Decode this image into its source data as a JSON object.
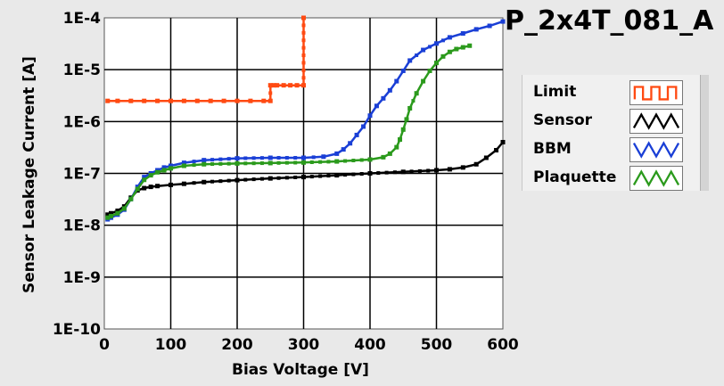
{
  "chart_data": {
    "type": "line",
    "title": "P_2x4T_081_A",
    "xlabel": "Bias Voltage [V]",
    "ylabel": "Sensor Leakage Current [A]",
    "xlim": [
      0,
      600
    ],
    "ylim": [
      1e-10,
      0.0001
    ],
    "yscale": "log",
    "grid": true,
    "legend_position": "right",
    "xticks": [
      0,
      100,
      200,
      300,
      400,
      500,
      600
    ],
    "xtick_labels": [
      "0",
      "100",
      "200",
      "300",
      "400",
      "500",
      "600"
    ],
    "yticks": [
      1e-10,
      1e-09,
      1e-08,
      1e-07,
      1e-06,
      1e-05,
      0.0001
    ],
    "ytick_labels": [
      "1E-10",
      "1E-9",
      "1E-8",
      "1E-7",
      "1E-6",
      "1E-5",
      "1E-4"
    ],
    "series": [
      {
        "name": "Limit",
        "color": "#ff4a12",
        "step": true,
        "markers": true,
        "x": [
          5,
          20,
          40,
          60,
          80,
          100,
          120,
          140,
          160,
          180,
          200,
          220,
          240,
          250,
          250,
          255,
          260,
          270,
          280,
          290,
          300,
          300
        ],
        "y": [
          2.5e-06,
          2.5e-06,
          2.5e-06,
          2.5e-06,
          2.5e-06,
          2.5e-06,
          2.5e-06,
          2.5e-06,
          2.5e-06,
          2.5e-06,
          2.5e-06,
          2.5e-06,
          2.5e-06,
          2.5e-06,
          5e-06,
          5e-06,
          5e-06,
          5e-06,
          5e-06,
          5e-06,
          5e-06,
          0.0001
        ]
      },
      {
        "name": "Sensor",
        "color": "#000000",
        "step": false,
        "markers": true,
        "x": [
          5,
          10,
          20,
          30,
          40,
          50,
          60,
          70,
          80,
          100,
          120,
          150,
          200,
          250,
          300,
          350,
          400,
          450,
          500,
          520,
          540,
          560,
          575,
          590,
          600
        ],
        "y": [
          1.6e-08,
          1.7e-08,
          1.9e-08,
          2.3e-08,
          3.4e-08,
          4.7e-08,
          5.2e-08,
          5.5e-08,
          5.7e-08,
          6e-08,
          6.3e-08,
          6.8e-08,
          7.4e-08,
          8e-08,
          8.5e-08,
          9.2e-08,
          1e-07,
          1.07e-07,
          1.15e-07,
          1.2e-07,
          1.3e-07,
          1.5e-07,
          2e-07,
          2.8e-07,
          4e-07
        ]
      },
      {
        "name": "BBM",
        "color": "#1a3fd6",
        "step": false,
        "markers": true,
        "x": [
          5,
          10,
          20,
          30,
          40,
          50,
          60,
          70,
          80,
          90,
          100,
          120,
          150,
          200,
          250,
          300,
          330,
          350,
          360,
          370,
          380,
          390,
          400,
          410,
          420,
          430,
          440,
          450,
          460,
          480,
          500,
          520,
          540,
          560,
          580,
          600
        ],
        "y": [
          1.3e-08,
          1.4e-08,
          1.6e-08,
          2e-08,
          3.2e-08,
          5.5e-08,
          8.5e-08,
          1e-07,
          1.15e-07,
          1.3e-07,
          1.4e-07,
          1.6e-07,
          1.8e-07,
          1.95e-07,
          2e-07,
          2e-07,
          2.1e-07,
          2.4e-07,
          2.9e-07,
          3.8e-07,
          5.5e-07,
          8e-07,
          1.3e-06,
          2e-06,
          2.8e-06,
          4e-06,
          6e-06,
          9.5e-06,
          1.5e-05,
          2.4e-05,
          3.2e-05,
          4.2e-05,
          5e-05,
          6e-05,
          7e-05,
          8.5e-05
        ]
      },
      {
        "name": "Plaquette",
        "color": "#2b9a1c",
        "step": false,
        "markers": true,
        "x": [
          5,
          10,
          20,
          30,
          40,
          50,
          60,
          70,
          80,
          90,
          100,
          120,
          150,
          200,
          250,
          300,
          350,
          400,
          420,
          430,
          440,
          445,
          450,
          455,
          460,
          470,
          480,
          490,
          500,
          510,
          520,
          530,
          540,
          550
        ],
        "y": [
          1.4e-08,
          1.5e-08,
          1.7e-08,
          2.1e-08,
          3.2e-08,
          5e-08,
          7.5e-08,
          9.2e-08,
          1.05e-07,
          1.15e-07,
          1.25e-07,
          1.4e-07,
          1.5e-07,
          1.55e-07,
          1.58e-07,
          1.62e-07,
          1.7e-07,
          1.85e-07,
          2.05e-07,
          2.4e-07,
          3.2e-07,
          4.5e-07,
          7e-07,
          1.1e-06,
          1.8e-06,
          3.5e-06,
          6e-06,
          9.5e-06,
          1.35e-05,
          1.8e-05,
          2.2e-05,
          2.5e-05,
          2.7e-05,
          2.9e-05
        ]
      }
    ]
  }
}
